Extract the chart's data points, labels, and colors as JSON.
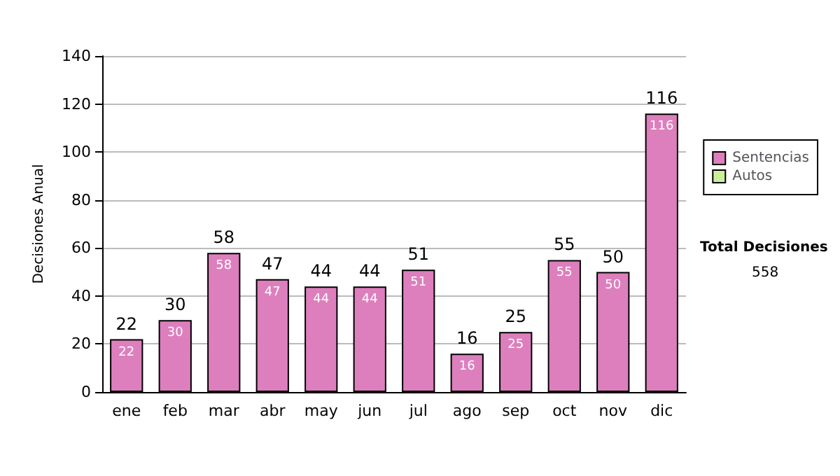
{
  "chart_data": {
    "type": "bar",
    "stacked": true,
    "ylabel": "Decisiones Anual",
    "categories": [
      "ene",
      "feb",
      "mar",
      "abr",
      "may",
      "jun",
      "jul",
      "ago",
      "sep",
      "oct",
      "nov",
      "dic"
    ],
    "series": [
      {
        "name": "Sentencias",
        "color": "#dd7fbd",
        "values": [
          22,
          30,
          58,
          47,
          44,
          44,
          51,
          16,
          25,
          55,
          50,
          116
        ]
      },
      {
        "name": "Autos",
        "color": "#ccee99",
        "values": [
          null,
          null,
          null,
          null,
          null,
          null,
          null,
          null,
          null,
          null,
          null,
          null
        ]
      }
    ],
    "data_labels": true,
    "totals": [
      "22",
      "30",
      "58",
      "47",
      "44",
      "44",
      "51",
      "16",
      "25",
      "55",
      "50",
      "116"
    ],
    "ylim": [
      0,
      140
    ],
    "yticks": [
      0,
      20,
      40,
      60,
      80,
      100,
      120,
      140
    ],
    "grid": "y",
    "legend": "right",
    "annotations": [
      "Total Decisiones",
      "558"
    ]
  }
}
